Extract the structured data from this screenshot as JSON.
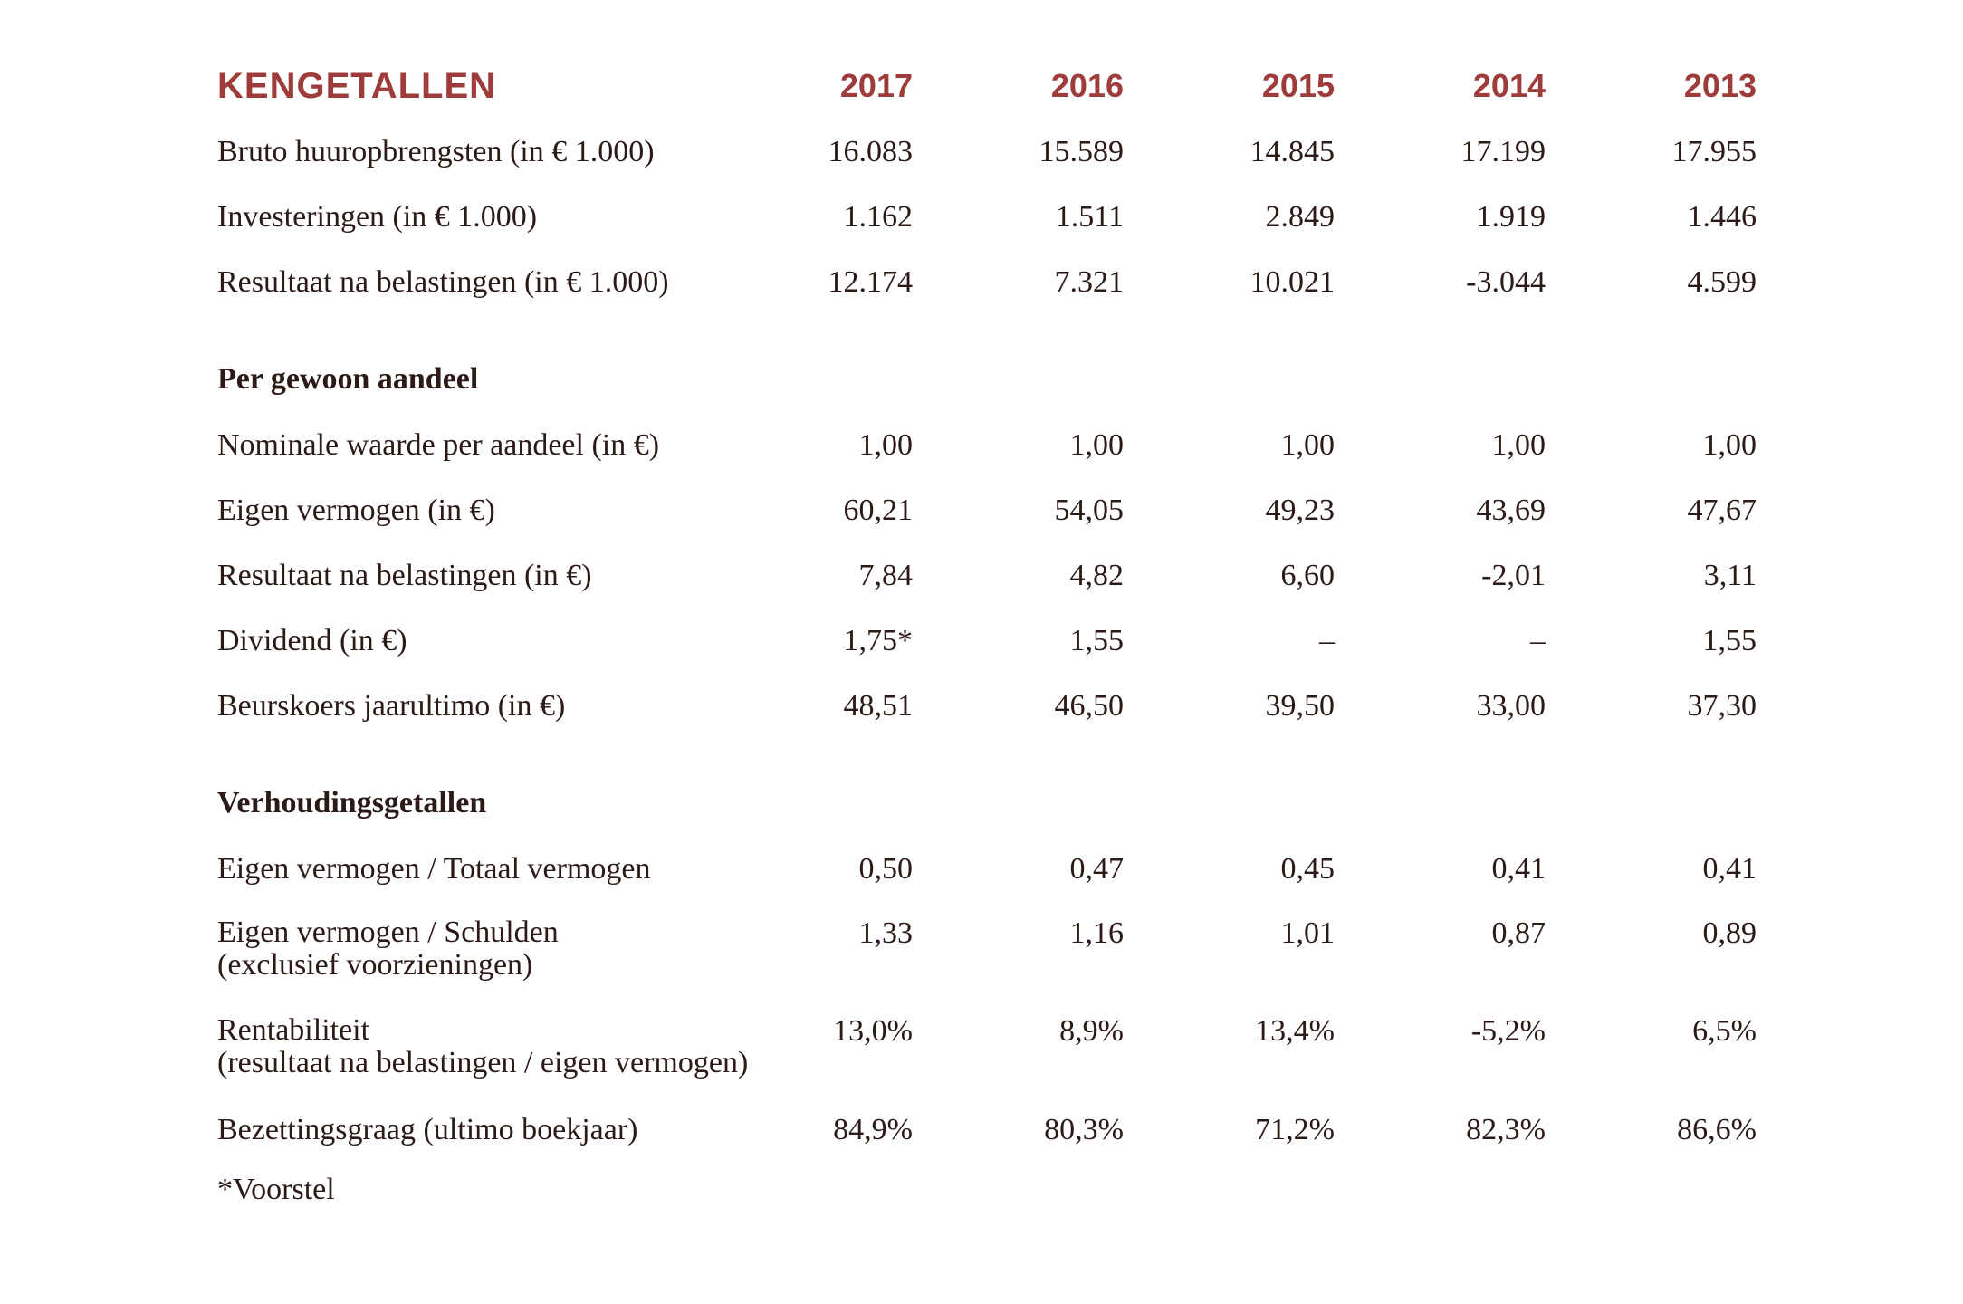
{
  "title": "KENGETALLEN",
  "years": [
    "2017",
    "2016",
    "2015",
    "2014",
    "2013"
  ],
  "colors": {
    "accent": "#9e3b3b",
    "text": "#2b1a16",
    "background": "#ffffff"
  },
  "footnote": "*Voorstel",
  "sections": [
    {
      "header": "",
      "rows": [
        {
          "label": "Bruto huuropbrengsten (in € 1.000)",
          "values": [
            "16.083",
            "15.589",
            "14.845",
            "17.199",
            "17.955"
          ]
        },
        {
          "label": "Investeringen (in € 1.000)",
          "values": [
            "1.162",
            "1.511",
            "2.849",
            "1.919",
            "1.446"
          ]
        },
        {
          "label": "Resultaat na belastingen (in € 1.000)",
          "values": [
            "12.174",
            "7.321",
            "10.021",
            "-3.044",
            "4.599"
          ]
        }
      ]
    },
    {
      "header": "Per gewoon aandeel",
      "rows": [
        {
          "label": "Nominale waarde per aandeel (in €)",
          "values": [
            "1,00",
            "1,00",
            "1,00",
            "1,00",
            "1,00"
          ]
        },
        {
          "label": "Eigen vermogen (in €)",
          "values": [
            "60,21",
            "54,05",
            "49,23",
            "43,69",
            "47,67"
          ]
        },
        {
          "label": "Resultaat na belastingen (in €)",
          "values": [
            "7,84",
            "4,82",
            "6,60",
            "-2,01",
            "3,11"
          ]
        },
        {
          "label": "Dividend (in €)",
          "values": [
            "1,75*",
            "1,55",
            "–",
            "–",
            "1,55"
          ]
        },
        {
          "label": "Beurskoers jaarultimo (in €)",
          "values": [
            "48,51",
            "46,50",
            "39,50",
            "33,00",
            "37,30"
          ]
        }
      ]
    },
    {
      "header": "Verhoudingsgetallen",
      "rows": [
        {
          "label": "Eigen vermogen / Totaal vermogen",
          "values": [
            "0,50",
            "0,47",
            "0,45",
            "0,41",
            "0,41"
          ]
        },
        {
          "label": "Eigen vermogen / Schulden",
          "label2": "(exclusief voorzieningen)",
          "values": [
            "1,33",
            "1,16",
            "1,01",
            "0,87",
            "0,89"
          ]
        },
        {
          "label": "Rentabiliteit",
          "label2": "(resultaat na belastingen / eigen vermogen)",
          "values": [
            "13,0%",
            "8,9%",
            "13,4%",
            "-5,2%",
            "6,5%"
          ]
        },
        {
          "label": "Bezettingsgraag (ultimo boekjaar)",
          "values": [
            "84,9%",
            "80,3%",
            "71,2%",
            "82,3%",
            "86,6%"
          ]
        }
      ]
    }
  ]
}
